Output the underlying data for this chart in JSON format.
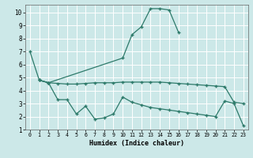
{
  "xlabel": "Humidex (Indice chaleur)",
  "bg_color": "#cce8e8",
  "line_color": "#2d7a6a",
  "grid_color": "#ffffff",
  "xlim": [
    -0.5,
    23.5
  ],
  "ylim": [
    1,
    10.6
  ],
  "yticks": [
    1,
    2,
    3,
    4,
    5,
    6,
    7,
    8,
    9,
    10
  ],
  "xticks": [
    0,
    1,
    2,
    3,
    4,
    5,
    6,
    7,
    8,
    9,
    10,
    11,
    12,
    13,
    14,
    15,
    16,
    17,
    18,
    19,
    20,
    21,
    22,
    23
  ],
  "series": [
    {
      "x": [
        0,
        1,
        2,
        10,
        11,
        12,
        13,
        14,
        15,
        16
      ],
      "y": [
        7.0,
        4.8,
        4.6,
        6.5,
        8.3,
        8.9,
        10.3,
        10.3,
        10.2,
        8.5
      ]
    },
    {
      "x": [
        1,
        2,
        3,
        4,
        5,
        6,
        7,
        8,
        9,
        10,
        11,
        12,
        13,
        14,
        15,
        16,
        17,
        18,
        19,
        20,
        21,
        22,
        23
      ],
      "y": [
        4.8,
        4.6,
        4.55,
        4.5,
        4.5,
        4.55,
        4.6,
        4.6,
        4.6,
        4.65,
        4.65,
        4.65,
        4.65,
        4.65,
        4.6,
        4.55,
        4.5,
        4.45,
        4.4,
        4.35,
        4.3,
        3.1,
        3.0
      ]
    },
    {
      "x": [
        1,
        2,
        3,
        4,
        5,
        6,
        7,
        8,
        9,
        10,
        11,
        12,
        13,
        14,
        15,
        16,
        17,
        18,
        19,
        20,
        21,
        22,
        23
      ],
      "y": [
        4.8,
        4.6,
        3.3,
        3.3,
        2.2,
        2.8,
        1.8,
        1.9,
        2.2,
        3.5,
        3.1,
        2.9,
        2.7,
        2.6,
        2.5,
        2.4,
        2.3,
        2.2,
        2.1,
        2.0,
        3.2,
        3.0,
        1.3
      ]
    }
  ]
}
